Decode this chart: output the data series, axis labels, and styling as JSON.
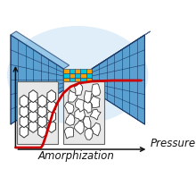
{
  "bg_color": "#ffffff",
  "bowtie_fill": "#5aa0d0",
  "bowtie_fill2": "#7ab8e0",
  "bowtie_edge": "#1a3a6a",
  "bowtie_glow": "#c0dff5",
  "cyan_color": "#00c8d8",
  "orange_color": "#f5a000",
  "red_line_color": "#cc0000",
  "axis_color": "#111111",
  "inset_bg": "#e8e8e8",
  "inset_border": "#666666",
  "hex_color": "#ffffff",
  "hex_edge": "#333333",
  "blob_color": "#ffffff",
  "blob_edge": "#333333",
  "pressure_label": "Pressure",
  "amorphization_label": "Amorphization",
  "label_fontsize": 8.5,
  "label_style": "italic"
}
